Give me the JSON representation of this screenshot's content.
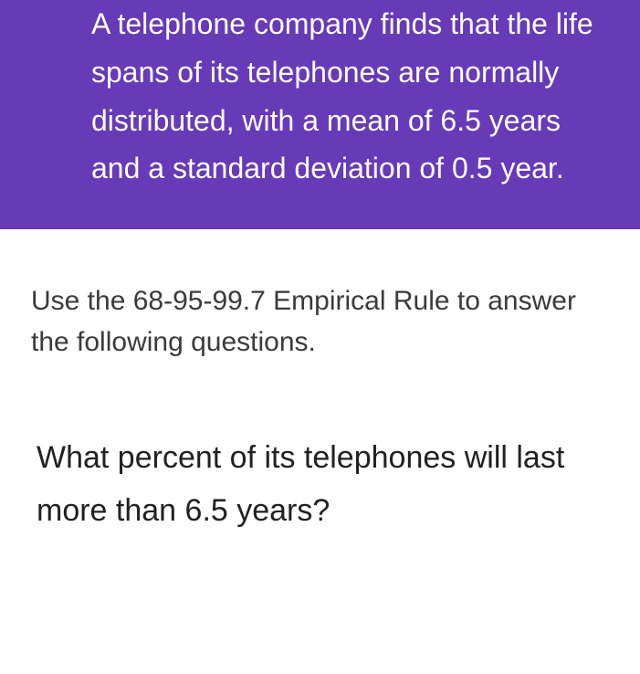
{
  "header": {
    "text": "A telephone company finds that the life spans of its telephones are normally distributed, with a mean of 6.5 years and a standard deviation of 0.5 year.",
    "background_color": "#673ab7",
    "text_color": "#ffffff",
    "font_size": 32
  },
  "instruction": {
    "text": "Use the 68-95-99.7 Empirical Rule to answer the following questions.",
    "text_color": "#3a3a3a",
    "font_size": 30
  },
  "question": {
    "text": "What percent of its telephones will last more than 6.5 years?",
    "text_color": "#212121",
    "font_size": 34
  }
}
